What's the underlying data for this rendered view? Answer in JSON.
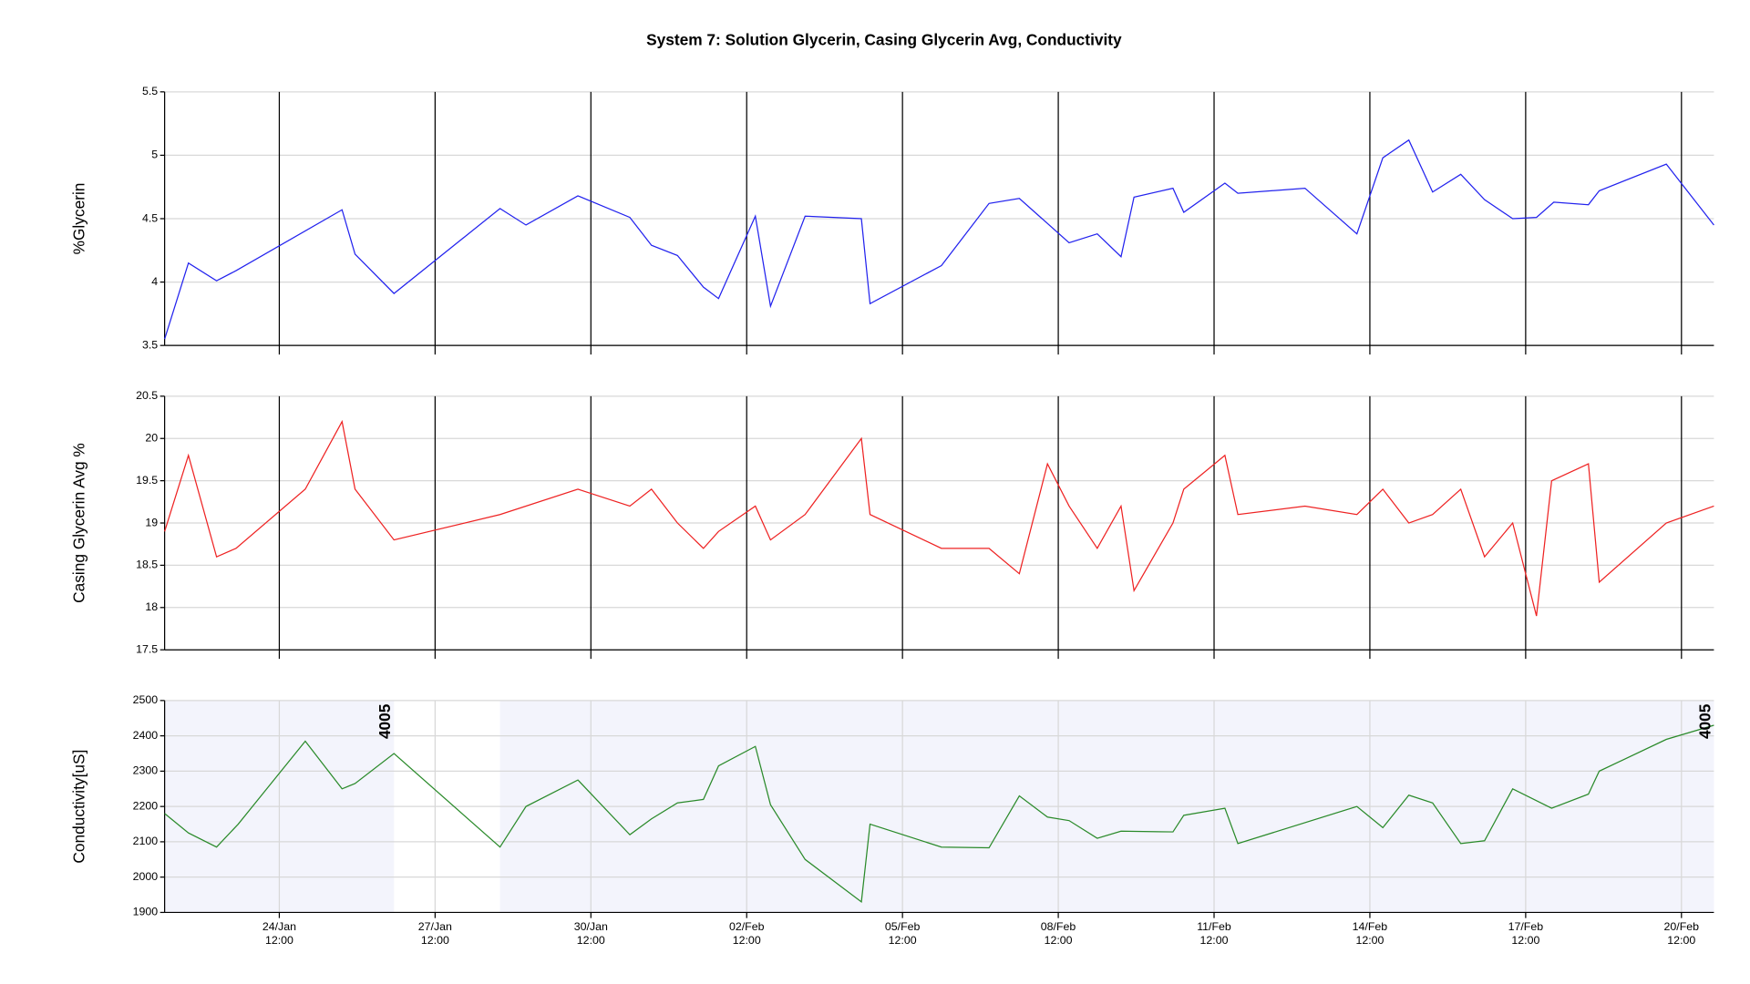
{
  "chart_data": [
    {
      "type": "line",
      "title": "System 7: Solution Glycerin, Casing Glycerin Avg, Conductivity",
      "ylabel": "%Glycerin",
      "color": "#2222ee",
      "xlim": [
        "22/Jan 07:00",
        "21/Feb 03:00"
      ],
      "ylim": [
        3.5,
        5.5
      ],
      "yticks": [
        3.5,
        4,
        4.5,
        5,
        5.5
      ],
      "grid": true,
      "x": [
        "22/Jan 07:00",
        "22/Jan 18:00",
        "23/Jan 07:00",
        "23/Jan 16:00",
        "25/Jan 17:00",
        "25/Jan 23:00",
        "26/Jan 17:00",
        "28/Jan 18:00",
        "29/Jan 06:00",
        "30/Jan 06:00",
        "31/Jan 06:00",
        "31/Jan 16:00",
        "01/Feb 04:00",
        "01/Feb 16:00",
        "01/Feb 23:00",
        "02/Feb 16:00",
        "02/Feb 23:00",
        "03/Feb 15:00",
        "04/Feb 17:00",
        "04/Feb 21:00",
        "06/Feb 06:00",
        "07/Feb 04:00",
        "07/Feb 18:00",
        "08/Feb 17:00",
        "09/Feb 06:00",
        "09/Feb 17:00",
        "09/Feb 23:00",
        "10/Feb 17:00",
        "10/Feb 22:00",
        "11/Feb 17:00",
        "11/Feb 23:00",
        "13/Feb 06:00",
        "14/Feb 06:00",
        "14/Feb 18:00",
        "15/Feb 06:00",
        "15/Feb 17:00",
        "16/Feb 06:00",
        "16/Feb 17:00",
        "17/Feb 06:00",
        "17/Feb 17:00",
        "18/Feb 01:00",
        "18/Feb 17:00",
        "18/Feb 22:00",
        "20/Feb 05:00",
        "21/Feb 03:00"
      ],
      "values": [
        3.55,
        4.15,
        4.01,
        4.09,
        4.57,
        4.22,
        3.91,
        4.58,
        4.45,
        4.68,
        4.51,
        4.29,
        4.21,
        3.96,
        3.87,
        4.52,
        3.81,
        4.52,
        4.5,
        3.83,
        4.13,
        4.62,
        4.66,
        4.31,
        4.38,
        4.2,
        4.67,
        4.74,
        4.55,
        4.78,
        4.7,
        4.74,
        4.38,
        4.98,
        5.12,
        4.71,
        4.85,
        4.65,
        4.5,
        4.51,
        4.63,
        4.61,
        4.72,
        4.93,
        4.45
      ]
    },
    {
      "type": "line",
      "ylabel": "Casing Glycerin Avg %",
      "color": "#ee2222",
      "xlim": [
        "22/Jan 07:00",
        "21/Feb 03:00"
      ],
      "ylim": [
        17.5,
        20.5
      ],
      "yticks": [
        17.5,
        18,
        18.5,
        19,
        19.5,
        20,
        20.5
      ],
      "grid": true,
      "x": [
        "22/Jan 07:00",
        "22/Jan 18:00",
        "23/Jan 07:00",
        "23/Jan 16:00",
        "25/Jan 00:00",
        "25/Jan 17:00",
        "25/Jan 23:00",
        "26/Jan 17:00",
        "28/Jan 18:00",
        "30/Jan 06:00",
        "31/Jan 06:00",
        "31/Jan 16:00",
        "01/Feb 04:00",
        "01/Feb 16:00",
        "01/Feb 23:00",
        "02/Feb 16:00",
        "02/Feb 23:00",
        "03/Feb 15:00",
        "04/Feb 17:00",
        "04/Feb 21:00",
        "06/Feb 06:00",
        "07/Feb 04:00",
        "07/Feb 18:00",
        "08/Feb 07:00",
        "08/Feb 17:00",
        "09/Feb 06:00",
        "09/Feb 17:00",
        "09/Feb 23:00",
        "10/Feb 17:00",
        "10/Feb 22:00",
        "11/Feb 17:00",
        "11/Feb 23:00",
        "13/Feb 06:00",
        "14/Feb 06:00",
        "14/Feb 18:00",
        "15/Feb 06:00",
        "15/Feb 17:00",
        "16/Feb 06:00",
        "16/Feb 17:00",
        "17/Feb 06:00",
        "17/Feb 17:00",
        "18/Feb 00:00",
        "18/Feb 17:00",
        "18/Feb 22:00",
        "20/Feb 05:00",
        "21/Feb 03:00"
      ],
      "values": [
        18.9,
        19.8,
        18.6,
        18.7,
        19.4,
        20.2,
        19.4,
        18.8,
        19.1,
        19.4,
        19.2,
        19.4,
        19.0,
        18.7,
        18.9,
        19.2,
        18.8,
        19.1,
        20.0,
        19.1,
        18.7,
        18.7,
        18.4,
        19.7,
        19.2,
        18.7,
        19.2,
        18.2,
        19.0,
        19.4,
        19.8,
        19.1,
        19.2,
        19.1,
        19.4,
        19.0,
        19.1,
        19.4,
        18.6,
        19.0,
        17.9,
        19.5,
        19.7,
        18.3,
        19.0,
        19.2
      ]
    },
    {
      "type": "line",
      "ylabel": "Conductivity[uS]",
      "color": "#2a8a2a",
      "xlim": [
        "22/Jan 07:00",
        "21/Feb 03:00"
      ],
      "ylim": [
        1900,
        2500
      ],
      "yticks": [
        1900,
        2000,
        2100,
        2200,
        2300,
        2400,
        2500
      ],
      "grid": true,
      "xticks": [
        "24/Jan\n12:00",
        "27/Jan\n12:00",
        "30/Jan\n12:00",
        "02/Feb\n12:00",
        "05/Feb\n12:00",
        "08/Feb\n12:00",
        "11/Feb\n12:00",
        "14/Feb\n12:00",
        "17/Feb\n12:00",
        "20/Feb\n12:00"
      ],
      "regions": [
        {
          "start": "22/Jan 07:00",
          "end": "26/Jan 17:00",
          "label": "4005"
        },
        {
          "start": "28/Jan 18:00",
          "end": "21/Feb 03:00",
          "label": "4005"
        }
      ],
      "x": [
        "22/Jan 07:00",
        "22/Jan 18:00",
        "23/Jan 07:00",
        "23/Jan 17:00",
        "25/Jan 00:00",
        "25/Jan 17:00",
        "25/Jan 23:00",
        "26/Jan 17:00",
        "28/Jan 18:00",
        "29/Jan 06:00",
        "30/Jan 06:00",
        "31/Jan 06:00",
        "31/Jan 16:00",
        "01/Feb 04:00",
        "01/Feb 16:00",
        "01/Feb 23:00",
        "02/Feb 16:00",
        "02/Feb 23:00",
        "03/Feb 15:00",
        "04/Feb 17:00",
        "04/Feb 21:00",
        "06/Feb 06:00",
        "07/Feb 04:00",
        "07/Feb 18:00",
        "08/Feb 07:00",
        "08/Feb 17:00",
        "09/Feb 06:00",
        "09/Feb 17:00",
        "10/Feb 17:00",
        "10/Feb 22:00",
        "11/Feb 17:00",
        "11/Feb 23:00",
        "14/Feb 06:00",
        "14/Feb 18:00",
        "15/Feb 06:00",
        "15/Feb 17:00",
        "16/Feb 06:00",
        "16/Feb 17:00",
        "17/Feb 06:00",
        "18/Feb 00:00",
        "18/Feb 17:00",
        "18/Feb 22:00",
        "20/Feb 05:00",
        "21/Feb 03:00"
      ],
      "values": [
        2180,
        2125,
        2085,
        2150,
        2385,
        2250,
        2265,
        2350,
        2085,
        2200,
        2275,
        2120,
        2165,
        2210,
        2220,
        2315,
        2370,
        2205,
        2050,
        1930,
        2150,
        2085,
        2083,
        2230,
        2170,
        2160,
        2110,
        2130,
        2128,
        2175,
        2195,
        2095,
        2200,
        2140,
        2232,
        2210,
        2095,
        2103,
        2250,
        2195,
        2235,
        2300,
        2390,
        2430
      ]
    }
  ]
}
